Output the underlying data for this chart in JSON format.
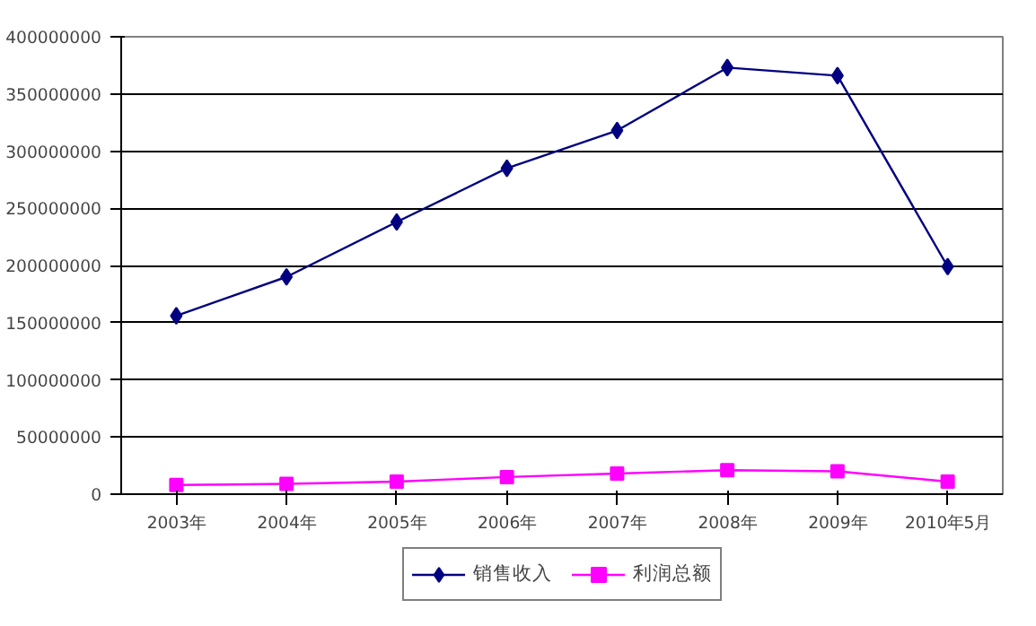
{
  "chart_data": {
    "type": "line",
    "categories": [
      "2003年",
      "2004年",
      "2005年",
      "2006年",
      "2007年",
      "2008年",
      "2009年",
      "2010年5月"
    ],
    "series": [
      {
        "name": "销售收入",
        "color": "#000080",
        "marker": "diamond",
        "values": [
          156000000,
          190000000,
          238000000,
          285000000,
          318000000,
          373000000,
          366000000,
          199000000
        ]
      },
      {
        "name": "利润总额",
        "color": "#ff00ff",
        "marker": "square",
        "values": [
          8000000,
          9000000,
          11000000,
          15000000,
          18000000,
          21000000,
          20000000,
          11000000
        ]
      }
    ],
    "ylim": [
      0,
      400000000
    ],
    "yticks": [
      0,
      50000000,
      100000000,
      150000000,
      200000000,
      250000000,
      300000000,
      350000000,
      400000000
    ],
    "grid": "y",
    "legend": "bottom",
    "line_style": "solid"
  }
}
